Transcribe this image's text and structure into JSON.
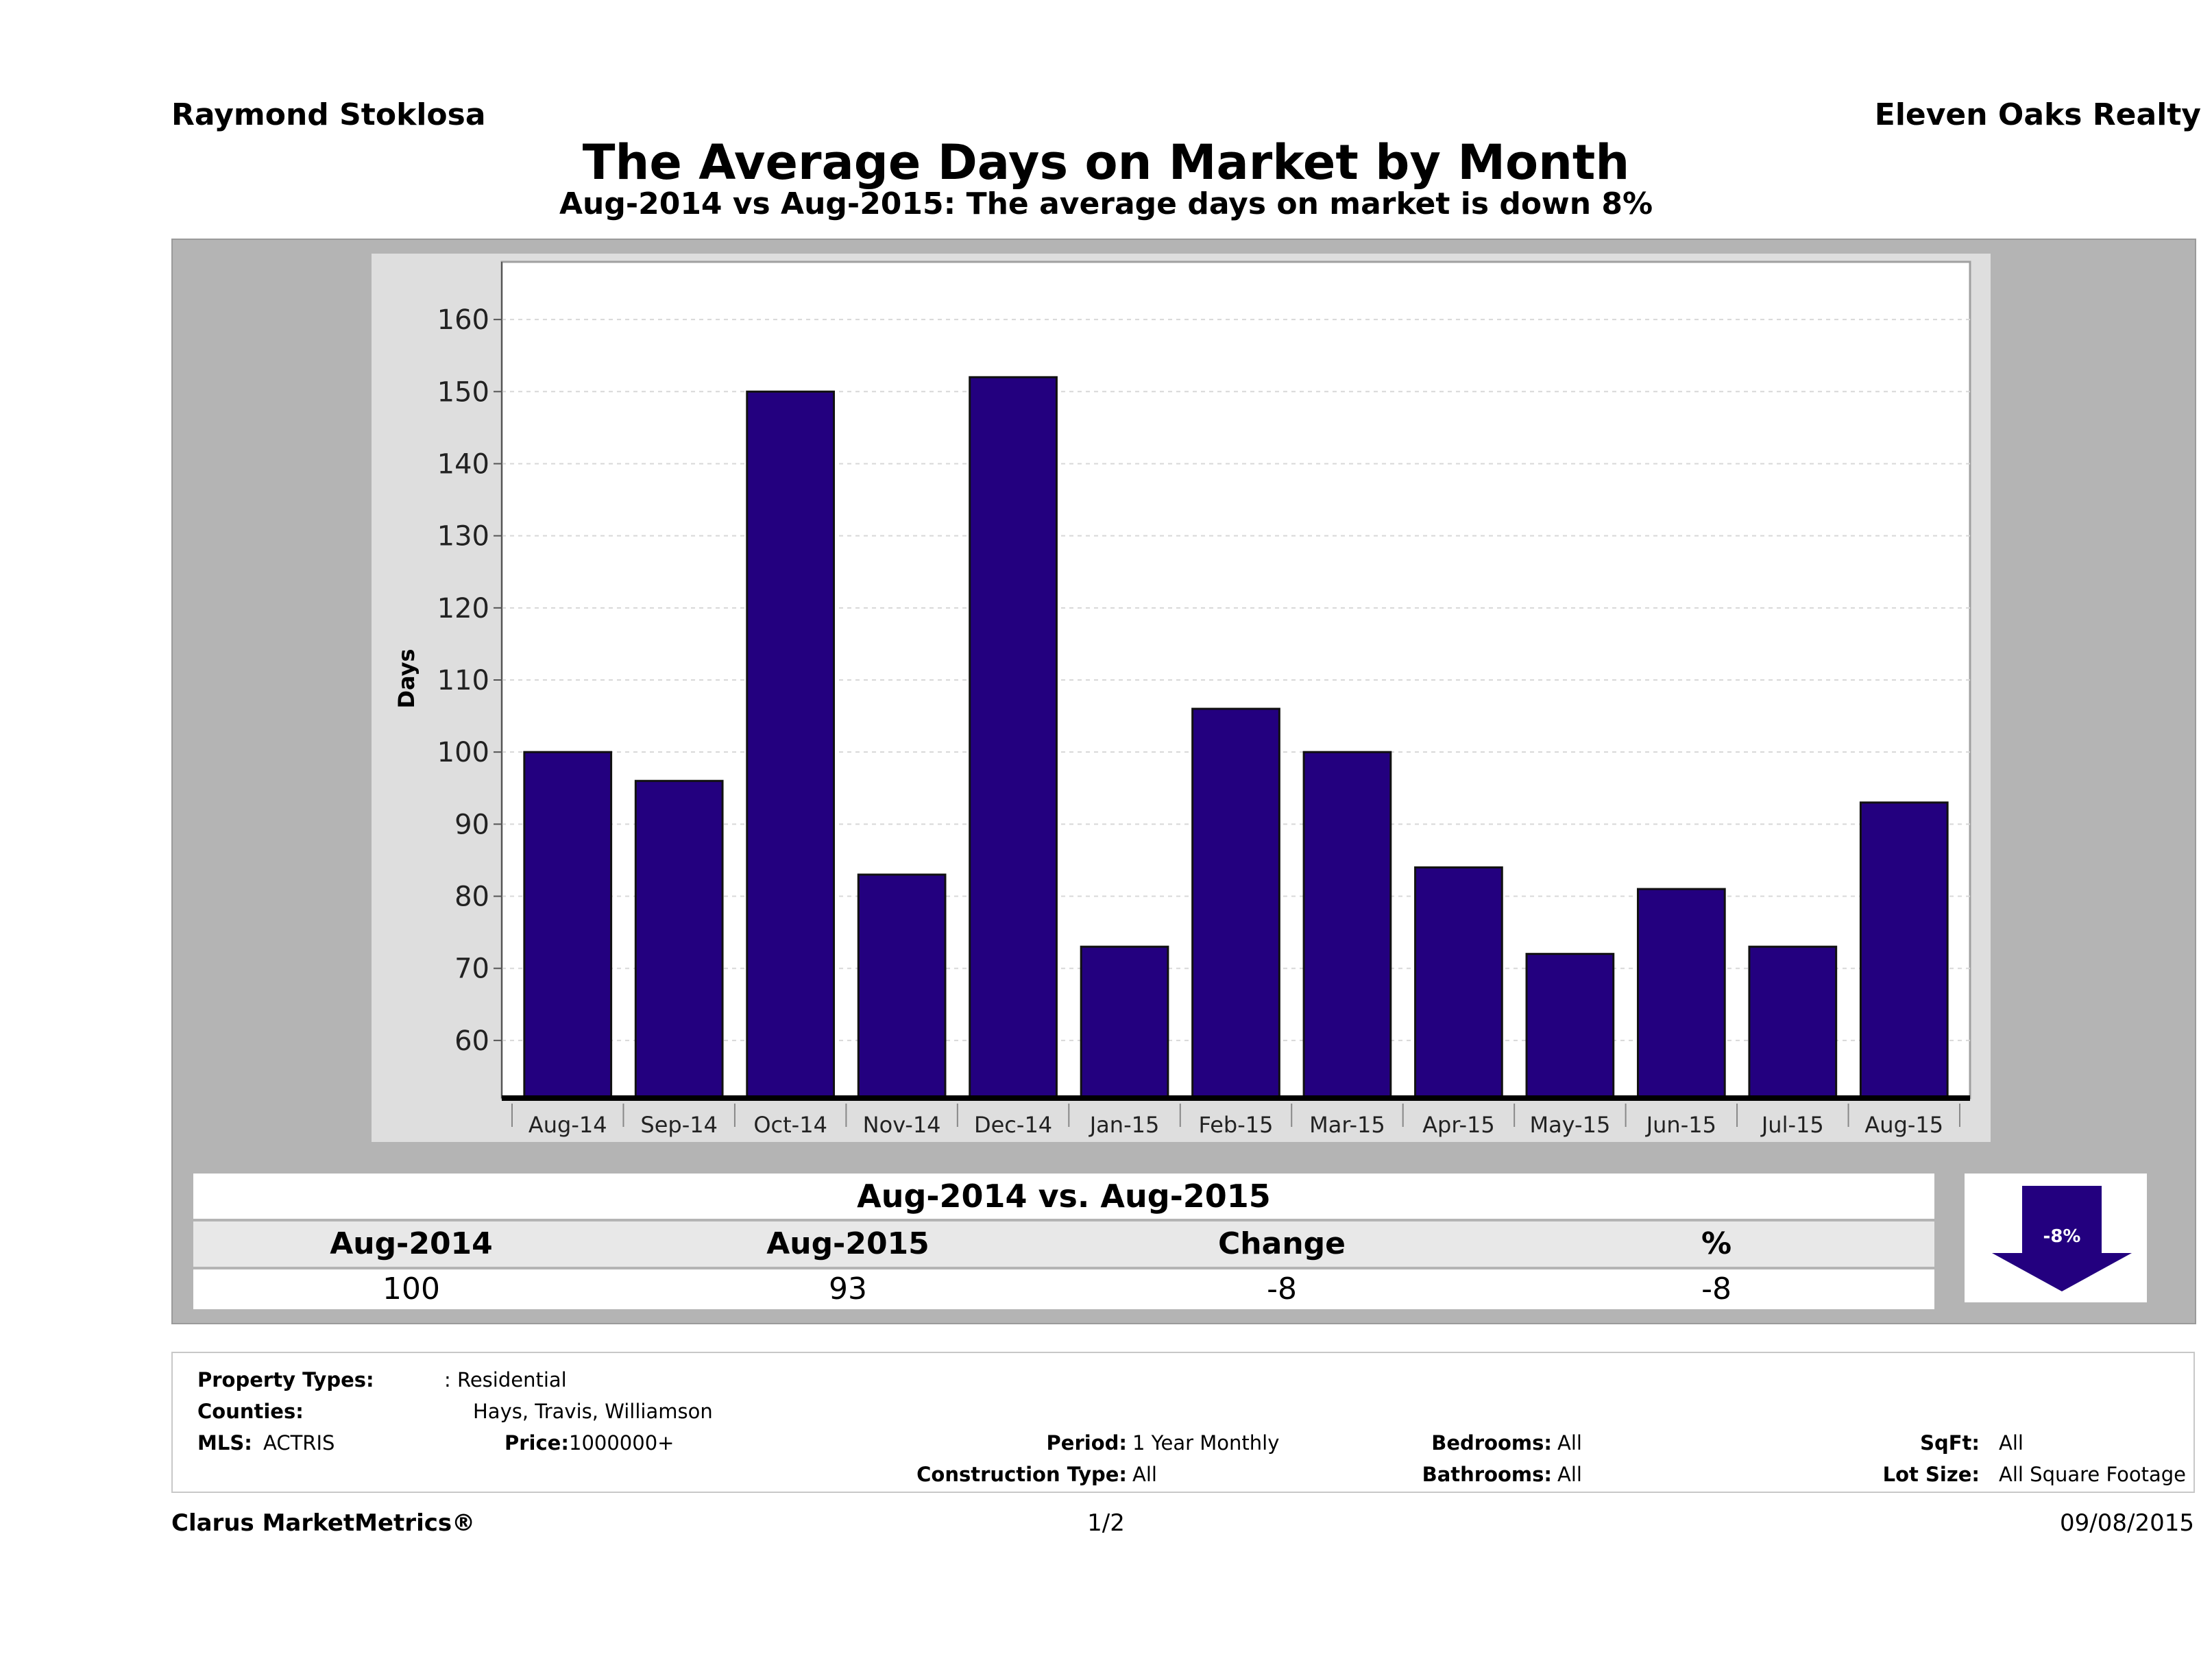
{
  "header": {
    "agent": "Raymond Stoklosa",
    "company": "Eleven Oaks Realty",
    "title": "The Average Days on Market by Month",
    "subtitle": "Aug-2014 vs Aug-2015: The average days on market is down 8%"
  },
  "chart_data": {
    "type": "bar",
    "ylabel": "Days",
    "xlabel": "",
    "categories": [
      "Aug-14",
      "Sep-14",
      "Oct-14",
      "Nov-14",
      "Dec-14",
      "Jan-15",
      "Feb-15",
      "Mar-15",
      "Apr-15",
      "May-15",
      "Jun-15",
      "Jul-15",
      "Aug-15"
    ],
    "values": [
      100,
      96,
      150,
      83,
      152,
      73,
      106,
      100,
      84,
      72,
      81,
      73,
      93
    ],
    "yticks": [
      60,
      70,
      80,
      90,
      100,
      110,
      120,
      130,
      140,
      150,
      160
    ],
    "ylim": [
      52,
      168
    ],
    "bar_color": "#23007f",
    "grid": true,
    "legend": "none"
  },
  "comparison": {
    "heading": "Aug-2014 vs. Aug-2015",
    "columns": [
      "Aug-2014",
      "Aug-2015",
      "Change",
      "%"
    ],
    "values": [
      "100",
      "93",
      "-8",
      "-8"
    ],
    "badge": "-8%",
    "arrow_color": "#23007f",
    "arrow_icon": "down-arrow-icon"
  },
  "filters": {
    "property_types_label": "Property Types:",
    "property_types_value": ": Residential",
    "counties_label": "Counties:",
    "counties_value": "Hays, Travis, Williamson",
    "mls_label": "MLS:",
    "mls_value": "ACTRIS",
    "price_label": "Price:",
    "price_value": "1000000+",
    "period_label": "Period:",
    "period_value": "1 Year Monthly",
    "construction_label": "Construction Type:",
    "construction_value": "All",
    "bedrooms_label": "Bedrooms:",
    "bedrooms_value": "All",
    "bathrooms_label": "Bathrooms:",
    "bathrooms_value": "All",
    "sqft_label": "SqFt:",
    "sqft_value": "All",
    "lotsize_label": "Lot Size:",
    "lotsize_value": "All Square Footage"
  },
  "footer": {
    "brand": "Clarus MarketMetrics®",
    "page": "1/2",
    "date": "09/08/2015"
  }
}
